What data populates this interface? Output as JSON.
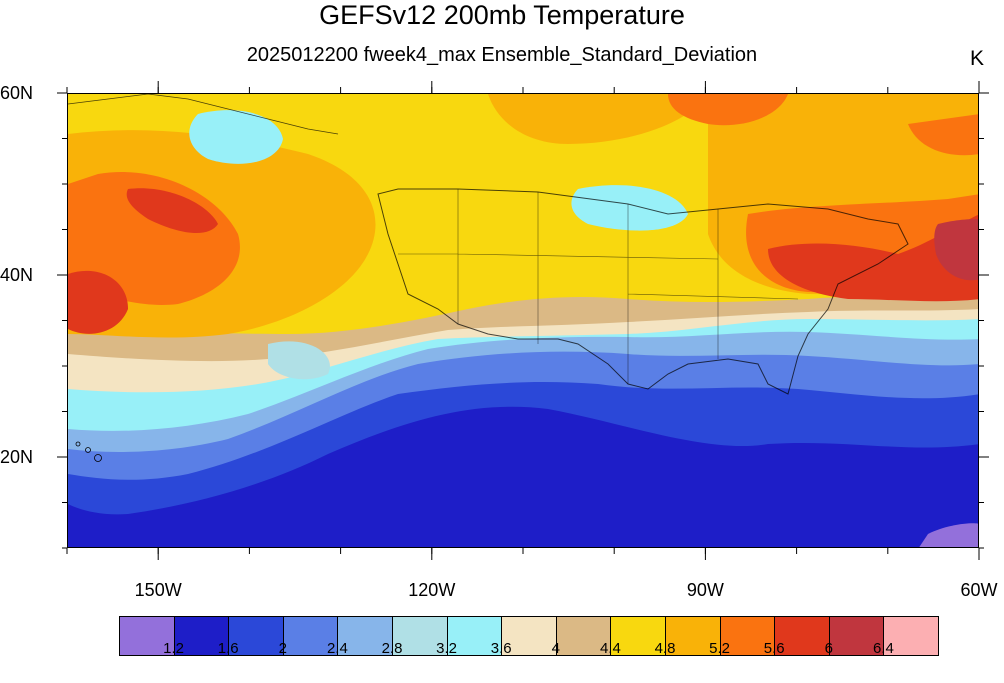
{
  "title": "GEFSv12 200mb Temperature",
  "subtitle": "2025012200 fweek4_max Ensemble_Standard_Deviation",
  "units": "K",
  "map": {
    "lon_range": [
      -160,
      -60
    ],
    "lat_range": [
      10,
      60
    ],
    "lon_ticks": [
      {
        "value": -150,
        "label": "150W"
      },
      {
        "value": -120,
        "label": "120W"
      },
      {
        "value": -90,
        "label": "90W"
      },
      {
        "value": -60,
        "label": "60W"
      }
    ],
    "lat_ticks": [
      {
        "value": 60,
        "label": "60N"
      },
      {
        "value": 40,
        "label": "40N"
      },
      {
        "value": 20,
        "label": "20N"
      }
    ]
  },
  "colorbar": {
    "colors": [
      "#9370db",
      "#1e1ec8",
      "#2b48d8",
      "#5a7fe6",
      "#87b5ea",
      "#b0e0e6",
      "#98f0f8",
      "#f4e4c2",
      "#dbb985",
      "#f8d80f",
      "#f9b208",
      "#fa7310",
      "#e0381c",
      "#c0363e",
      "#fcafb2"
    ],
    "levels": [
      "1.2",
      "1.6",
      "2",
      "2.4",
      "2.8",
      "3.2",
      "3.6",
      "4",
      "4.4",
      "4.8",
      "5.2",
      "5.6",
      "6",
      "6.4"
    ]
  }
}
